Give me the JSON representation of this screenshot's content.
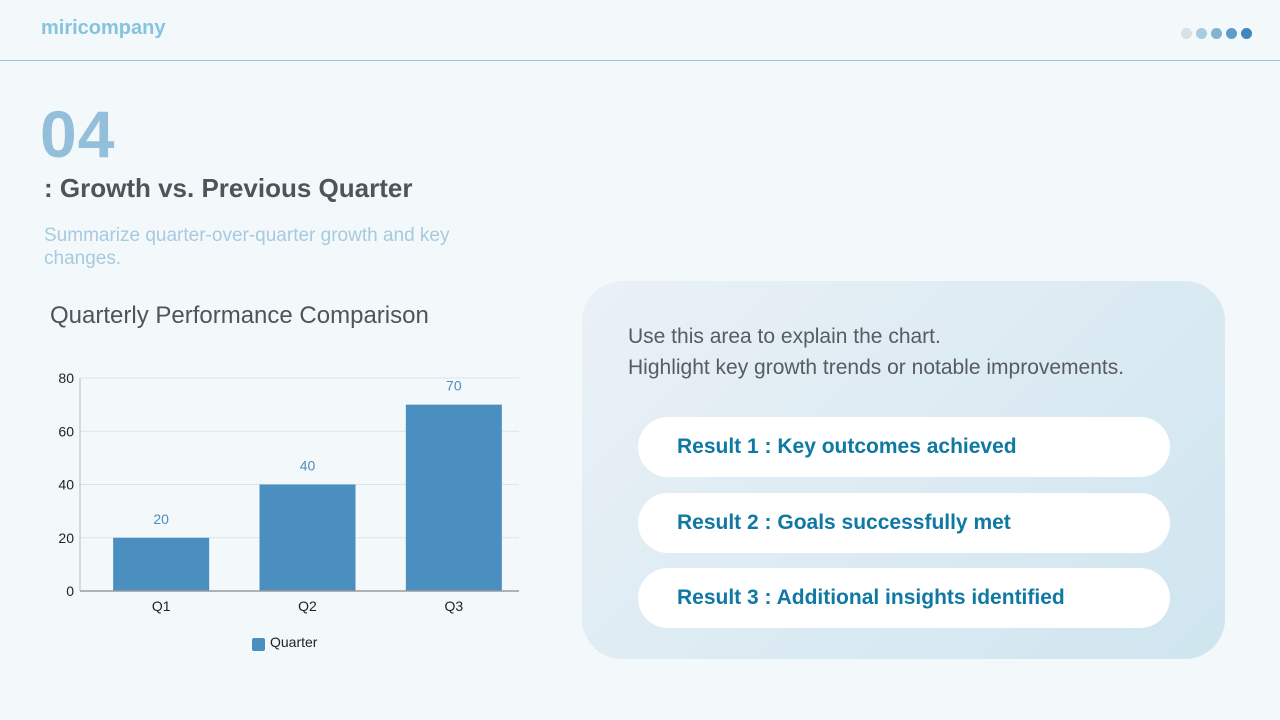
{
  "header": {
    "brand": "miricompany",
    "dot_colors": [
      "#d9e0e6",
      "#a9cbe0",
      "#80b4cf",
      "#5f9dc9",
      "#3f88bf"
    ]
  },
  "slide": {
    "number": "04",
    "title": ": Growth vs. Previous Quarter",
    "subtitle": "Summarize quarter-over-quarter growth and key changes."
  },
  "chart_data": {
    "type": "bar",
    "title": "Quarterly Performance Comparison",
    "categories": [
      "Q1",
      "Q2",
      "Q3"
    ],
    "series": [
      {
        "name": "Quarter",
        "values": [
          20,
          40,
          70
        ],
        "color": "#4a8fbf"
      }
    ],
    "ylim": [
      0,
      80
    ],
    "yticks": [
      0,
      20,
      40,
      60,
      80
    ],
    "grid": true,
    "legend": "bottom",
    "data_labels": true
  },
  "panel": {
    "explanation": [
      "Use this area to explain the chart.",
      "Highlight key growth trends or notable improvements."
    ],
    "results": [
      "Result 1 : Key outcomes achieved",
      "Result 2 : Goals successfully met",
      "Result 3 : Additional insights identified"
    ]
  }
}
